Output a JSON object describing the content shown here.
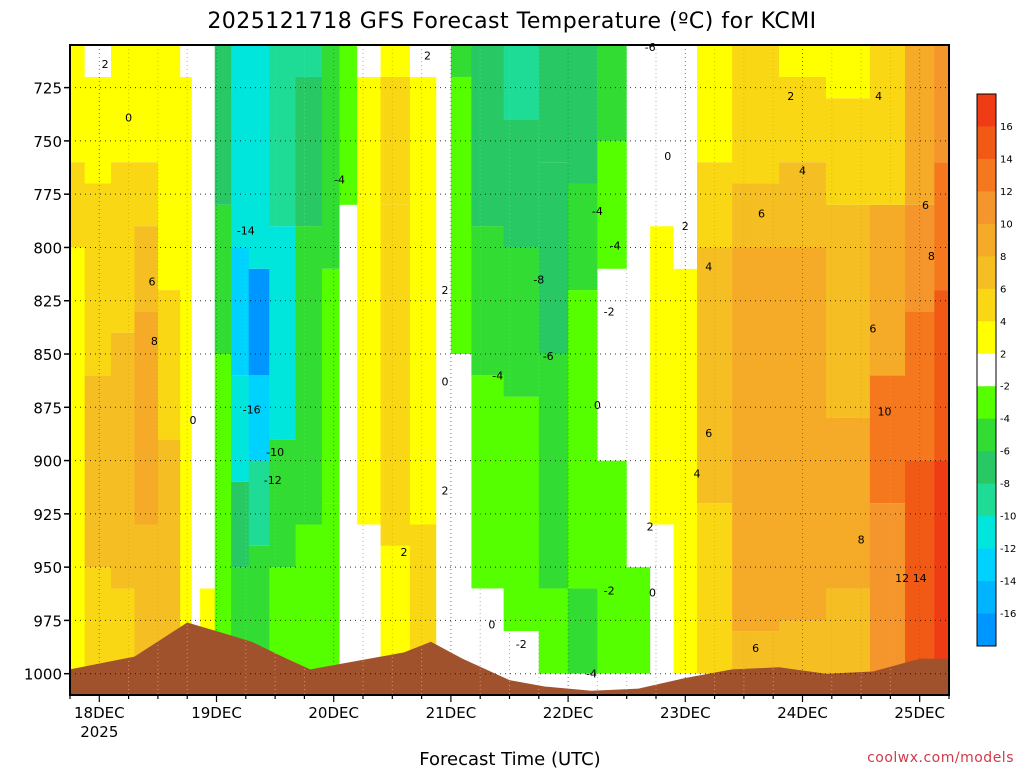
{
  "chart_data": {
    "type": "heatmap",
    "title": "2025121718 GFS Forecast Temperature (ºC) for KCMI",
    "xlabel": "Forecast Time (UTC)",
    "ylabel": "",
    "y_ticks": [
      725,
      750,
      775,
      800,
      825,
      850,
      875,
      900,
      925,
      950,
      975,
      1000
    ],
    "y_unit": "hPa",
    "ylim": [
      1010,
      705
    ],
    "x_ticks": [
      {
        "day": 18,
        "label": "18DEC",
        "sublabel": "2025"
      },
      {
        "day": 19,
        "label": "19DEC",
        "sublabel": ""
      },
      {
        "day": 20,
        "label": "20DEC",
        "sublabel": ""
      },
      {
        "day": 21,
        "label": "21DEC",
        "sublabel": ""
      },
      {
        "day": 22,
        "label": "22DEC",
        "sublabel": ""
      },
      {
        "day": 23,
        "label": "23DEC",
        "sublabel": ""
      },
      {
        "day": 24,
        "label": "24DEC",
        "sublabel": ""
      },
      {
        "day": 25,
        "label": "25DEC",
        "sublabel": ""
      }
    ],
    "xlim": [
      17.75,
      25.25
    ],
    "grid": true,
    "colorbar": {
      "labels": [
        "16",
        "14",
        "12",
        "10",
        "8",
        "6",
        "4",
        "2",
        "-2",
        "-4",
        "-6",
        "-8",
        "-10",
        "-12",
        "-14",
        "-16"
      ],
      "colors": [
        "#f03c14",
        "#f05a14",
        "#f5781e",
        "#f5962d",
        "#f5aa28",
        "#f5be23",
        "#fad714",
        "#ffff00",
        "#ffffff",
        "#55ff00",
        "#32dc32",
        "#28c864",
        "#1edc96",
        "#00e6dc",
        "#00d2ff",
        "#00b4ff",
        "#0096ff"
      ]
    },
    "columns": [
      {
        "t": 17.75,
        "b": [
          [
            1000,
            "#ffff00"
          ],
          [
            800,
            "#fad714"
          ],
          [
            760,
            "#ffff00"
          ],
          [
            705,
            "#ffffff"
          ]
        ]
      },
      {
        "t": 18.0,
        "b": [
          [
            1000,
            "#fad714"
          ],
          [
            950,
            "#f5be23"
          ],
          [
            860,
            "#fad714"
          ],
          [
            770,
            "#ffff00"
          ],
          [
            720,
            "#ffffff"
          ],
          [
            705,
            "#ffffff"
          ]
        ]
      },
      {
        "t": 18.2,
        "b": [
          [
            1000,
            "#fad714"
          ],
          [
            960,
            "#f5be23"
          ],
          [
            840,
            "#fad714"
          ],
          [
            760,
            "#ffff00"
          ],
          [
            705,
            "#ffffff"
          ]
        ]
      },
      {
        "t": 18.4,
        "b": [
          [
            1000,
            "#f5be23"
          ],
          [
            930,
            "#f5aa28"
          ],
          [
            830,
            "#f5be23"
          ],
          [
            790,
            "#fad714"
          ],
          [
            760,
            "#ffff00"
          ],
          [
            705,
            "#ffff00"
          ]
        ]
      },
      {
        "t": 18.6,
        "b": [
          [
            1000,
            "#f5be23"
          ],
          [
            890,
            "#fad714"
          ],
          [
            820,
            "#ffff00"
          ],
          [
            740,
            "#ffff00"
          ],
          [
            705,
            "#ffffff"
          ]
        ]
      },
      {
        "t": 18.78,
        "b": [
          [
            1000,
            "#ffff00"
          ],
          [
            900,
            "#ffff00"
          ],
          [
            720,
            "#ffffff"
          ],
          [
            705,
            "#ffffff"
          ]
        ]
      },
      {
        "t": 18.8,
        "b": [
          [
            1000,
            "#ffffff"
          ],
          [
            705,
            "#ffffff"
          ]
        ]
      },
      {
        "t": 18.92,
        "b": [
          [
            1000,
            "#ffff00"
          ],
          [
            960,
            "#ffffff"
          ],
          [
            705,
            "#ffffff"
          ]
        ]
      },
      {
        "t": 19.05,
        "b": [
          [
            1000,
            "#55ff00"
          ],
          [
            850,
            "#32dc32"
          ],
          [
            780,
            "#28c864"
          ],
          [
            705,
            "#1edc96"
          ]
        ]
      },
      {
        "t": 19.2,
        "b": [
          [
            1000,
            "#32dc32"
          ],
          [
            950,
            "#28c864"
          ],
          [
            910,
            "#00e6dc"
          ],
          [
            860,
            "#00d2ff"
          ],
          [
            800,
            "#00e6dc"
          ],
          [
            705,
            "#1edc96"
          ]
        ]
      },
      {
        "t": 19.35,
        "b": [
          [
            1000,
            "#32dc32"
          ],
          [
            940,
            "#1edc96"
          ],
          [
            900,
            "#00d2ff"
          ],
          [
            860,
            "#0096ff"
          ],
          [
            810,
            "#00e6dc"
          ],
          [
            705,
            "#00e6dc"
          ]
        ]
      },
      {
        "t": 19.55,
        "b": [
          [
            1000,
            "#55ff00"
          ],
          [
            950,
            "#32dc32"
          ],
          [
            890,
            "#00e6dc"
          ],
          [
            790,
            "#1edc96"
          ],
          [
            705,
            "#1edc96"
          ]
        ]
      },
      {
        "t": 19.8,
        "b": [
          [
            1000,
            "#55ff00"
          ],
          [
            930,
            "#32dc32"
          ],
          [
            790,
            "#28c864"
          ],
          [
            720,
            "#1edc96"
          ],
          [
            705,
            "#1edc96"
          ]
        ]
      },
      {
        "t": 20.0,
        "b": [
          [
            1000,
            "#55ff00"
          ],
          [
            920,
            "#55ff00"
          ],
          [
            810,
            "#32dc32"
          ],
          [
            705,
            "#28c864"
          ]
        ]
      },
      {
        "t": 20.1,
        "b": [
          [
            1000,
            "#ffffff"
          ],
          [
            780,
            "#55ff00"
          ],
          [
            705,
            "#32dc32"
          ]
        ]
      },
      {
        "t": 20.3,
        "b": [
          [
            1000,
            "#ffffff"
          ],
          [
            930,
            "#ffff00"
          ],
          [
            770,
            "#ffff00"
          ],
          [
            720,
            "#ffffff"
          ],
          [
            705,
            "#ffffff"
          ]
        ]
      },
      {
        "t": 20.5,
        "b": [
          [
            1000,
            "#ffff00"
          ],
          [
            940,
            "#fad714"
          ],
          [
            780,
            "#fad714"
          ],
          [
            720,
            "#ffff00"
          ],
          [
            705,
            "#ffff00"
          ]
        ]
      },
      {
        "t": 20.8,
        "b": [
          [
            1000,
            "#fad714"
          ],
          [
            930,
            "#ffff00"
          ],
          [
            800,
            "#ffff00"
          ],
          [
            720,
            "#ffffff"
          ],
          [
            705,
            "#ffff00"
          ]
        ]
      },
      {
        "t": 20.95,
        "b": [
          [
            1000,
            "#ffffff"
          ],
          [
            705,
            "#ffffff"
          ]
        ]
      },
      {
        "t": 21.05,
        "b": [
          [
            1000,
            "#ffffff"
          ],
          [
            850,
            "#55ff00"
          ],
          [
            720,
            "#32dc32"
          ],
          [
            705,
            "#28c864"
          ]
        ]
      },
      {
        "t": 21.3,
        "b": [
          [
            1000,
            "#ffffff"
          ],
          [
            960,
            "#55ff00"
          ],
          [
            860,
            "#32dc32"
          ],
          [
            790,
            "#28c864"
          ],
          [
            705,
            "#1edc96"
          ]
        ]
      },
      {
        "t": 21.6,
        "b": [
          [
            1000,
            "#ffffff"
          ],
          [
            980,
            "#55ff00"
          ],
          [
            870,
            "#32dc32"
          ],
          [
            800,
            "#28c864"
          ],
          [
            740,
            "#1edc96"
          ],
          [
            705,
            "#1edc96"
          ]
        ]
      },
      {
        "t": 21.9,
        "b": [
          [
            1000,
            "#55ff00"
          ],
          [
            960,
            "#32dc32"
          ],
          [
            850,
            "#28c864"
          ],
          [
            760,
            "#28c864"
          ],
          [
            705,
            "#1edc96"
          ]
        ]
      },
      {
        "t": 22.1,
        "b": [
          [
            1000,
            "#32dc32"
          ],
          [
            960,
            "#55ff00"
          ],
          [
            820,
            "#32dc32"
          ],
          [
            770,
            "#28c864"
          ],
          [
            705,
            "#28c864"
          ]
        ]
      },
      {
        "t": 22.4,
        "b": [
          [
            1000,
            "#55ff00"
          ],
          [
            900,
            "#ffffff"
          ],
          [
            810,
            "#55ff00"
          ],
          [
            750,
            "#32dc32"
          ],
          [
            705,
            "#32dc32"
          ]
        ]
      },
      {
        "t": 22.6,
        "b": [
          [
            1000,
            "#55ff00"
          ],
          [
            950,
            "#ffffff"
          ],
          [
            780,
            "#ffffff"
          ],
          [
            705,
            "#55ff00"
          ]
        ]
      },
      {
        "t": 22.8,
        "b": [
          [
            1000,
            "#ffffff"
          ],
          [
            930,
            "#ffff00"
          ],
          [
            790,
            "#ffffff"
          ],
          [
            705,
            "#ffffff"
          ]
        ]
      },
      {
        "t": 23.0,
        "b": [
          [
            1000,
            "#ffff00"
          ],
          [
            960,
            "#ffff00"
          ],
          [
            810,
            "#ffffff"
          ],
          [
            705,
            "#ffffff"
          ]
        ]
      },
      {
        "t": 23.2,
        "b": [
          [
            1000,
            "#fad714"
          ],
          [
            920,
            "#f5be23"
          ],
          [
            800,
            "#fad714"
          ],
          [
            760,
            "#ffff00"
          ],
          [
            705,
            "#ffff00"
          ]
        ]
      },
      {
        "t": 23.6,
        "b": [
          [
            1000,
            "#f5be23"
          ],
          [
            980,
            "#f5aa28"
          ],
          [
            800,
            "#f5be23"
          ],
          [
            770,
            "#fad714"
          ],
          [
            705,
            "#ffff00"
          ]
        ]
      },
      {
        "t": 24.0,
        "b": [
          [
            1000,
            "#f5be23"
          ],
          [
            975,
            "#f5aa28"
          ],
          [
            800,
            "#f5be23"
          ],
          [
            760,
            "#fad714"
          ],
          [
            720,
            "#ffff00"
          ],
          [
            705,
            "#ffffff"
          ]
        ]
      },
      {
        "t": 24.4,
        "b": [
          [
            1000,
            "#f5be23"
          ],
          [
            960,
            "#f5aa28"
          ],
          [
            880,
            "#f5be23"
          ],
          [
            780,
            "#fad714"
          ],
          [
            730,
            "#ffff00"
          ],
          [
            705,
            "#ffff00"
          ]
        ]
      },
      {
        "t": 24.75,
        "b": [
          [
            1000,
            "#f5962d"
          ],
          [
            920,
            "#f5781e"
          ],
          [
            860,
            "#f5aa28"
          ],
          [
            780,
            "#fad714"
          ],
          [
            705,
            "#fad714"
          ]
        ]
      },
      {
        "t": 25.0,
        "b": [
          [
            1000,
            "#f05a14"
          ],
          [
            900,
            "#f5781e"
          ],
          [
            830,
            "#f5962d"
          ],
          [
            780,
            "#f5aa28"
          ],
          [
            705,
            "#fad714"
          ]
        ]
      },
      {
        "t": 25.25,
        "b": [
          [
            1000,
            "#f03c14"
          ],
          [
            900,
            "#f05a14"
          ],
          [
            820,
            "#f5781e"
          ],
          [
            760,
            "#f5962d"
          ],
          [
            705,
            "#f5aa28"
          ]
        ]
      }
    ],
    "ground": [
      [
        17.75,
        998
      ],
      [
        18.3,
        992
      ],
      [
        18.75,
        976
      ],
      [
        19.0,
        980
      ],
      [
        19.3,
        985
      ],
      [
        19.6,
        993
      ],
      [
        19.8,
        998
      ],
      [
        20.2,
        994
      ],
      [
        20.6,
        990
      ],
      [
        20.83,
        985
      ],
      [
        21.1,
        993
      ],
      [
        21.5,
        1003
      ],
      [
        21.8,
        1006
      ],
      [
        22.2,
        1008
      ],
      [
        22.6,
        1007
      ],
      [
        23.0,
        1002
      ],
      [
        23.4,
        998
      ],
      [
        23.8,
        997
      ],
      [
        24.2,
        1000
      ],
      [
        24.6,
        999
      ],
      [
        25.0,
        993
      ],
      [
        25.25,
        993
      ]
    ],
    "contour_labels": [
      {
        "t": 18.05,
        "p": 714,
        "v": "2"
      },
      {
        "t": 18.25,
        "p": 739,
        "v": "0"
      },
      {
        "t": 18.45,
        "p": 816,
        "v": "6"
      },
      {
        "t": 18.47,
        "p": 844,
        "v": "8"
      },
      {
        "t": 18.8,
        "p": 881,
        "v": "0"
      },
      {
        "t": 19.25,
        "p": 792,
        "v": "-14"
      },
      {
        "t": 19.3,
        "p": 876,
        "v": "-16"
      },
      {
        "t": 19.5,
        "p": 896,
        "v": "-10"
      },
      {
        "t": 19.48,
        "p": 909,
        "v": "-12"
      },
      {
        "t": 20.05,
        "p": 768,
        "v": "-4"
      },
      {
        "t": 20.8,
        "p": 710,
        "v": "2"
      },
      {
        "t": 20.95,
        "p": 820,
        "v": "2"
      },
      {
        "t": 20.95,
        "p": 863,
        "v": "0"
      },
      {
        "t": 20.95,
        "p": 914,
        "v": "2"
      },
      {
        "t": 20.6,
        "p": 943,
        "v": "2"
      },
      {
        "t": 21.4,
        "p": 860,
        "v": "-4"
      },
      {
        "t": 21.75,
        "p": 815,
        "v": "-8"
      },
      {
        "t": 21.83,
        "p": 851,
        "v": "-6"
      },
      {
        "t": 21.35,
        "p": 977,
        "v": "0"
      },
      {
        "t": 21.6,
        "p": 986,
        "v": "-2"
      },
      {
        "t": 22.25,
        "p": 783,
        "v": "-4"
      },
      {
        "t": 22.4,
        "p": 799,
        "v": "-4"
      },
      {
        "t": 22.35,
        "p": 830,
        "v": "-2"
      },
      {
        "t": 22.25,
        "p": 874,
        "v": "0"
      },
      {
        "t": 22.7,
        "p": 706,
        "v": "-6"
      },
      {
        "t": 22.85,
        "p": 757,
        "v": "0"
      },
      {
        "t": 23.0,
        "p": 790,
        "v": "2"
      },
      {
        "t": 23.2,
        "p": 809,
        "v": "4"
      },
      {
        "t": 22.35,
        "p": 961,
        "v": "-2"
      },
      {
        "t": 22.2,
        "p": 1000,
        "v": "-4"
      },
      {
        "t": 22.7,
        "p": 931,
        "v": "2"
      },
      {
        "t": 22.72,
        "p": 962,
        "v": "0"
      },
      {
        "t": 23.1,
        "p": 906,
        "v": "4"
      },
      {
        "t": 23.2,
        "p": 887,
        "v": "6"
      },
      {
        "t": 23.9,
        "p": 729,
        "v": "2"
      },
      {
        "t": 24.0,
        "p": 764,
        "v": "4"
      },
      {
        "t": 23.65,
        "p": 784,
        "v": "6"
      },
      {
        "t": 24.65,
        "p": 729,
        "v": "4"
      },
      {
        "t": 25.05,
        "p": 780,
        "v": "6"
      },
      {
        "t": 25.1,
        "p": 804,
        "v": "8"
      },
      {
        "t": 24.6,
        "p": 838,
        "v": "6"
      },
      {
        "t": 24.7,
        "p": 877,
        "v": "10"
      },
      {
        "t": 24.5,
        "p": 937,
        "v": "8"
      },
      {
        "t": 24.85,
        "p": 955,
        "v": "12"
      },
      {
        "t": 25.0,
        "p": 955,
        "v": "14"
      },
      {
        "t": 23.6,
        "p": 988,
        "v": "6"
      }
    ],
    "credit": "coolwx.com/models"
  }
}
